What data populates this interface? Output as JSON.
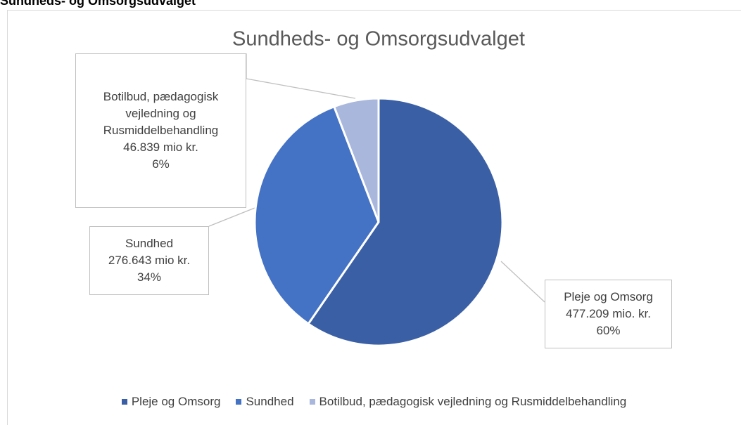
{
  "heading": "Sundheds- og Omsorgsudvalget",
  "chart_data": {
    "type": "pie",
    "title": "Sundheds- og Omsorgsudvalget",
    "categories": [
      "Pleje og Omsorg",
      "Sundhed",
      "Botilbud, pædagogisk vejledning og Rusmiddelbehandling"
    ],
    "values": [
      477.209,
      276.643,
      46.839
    ],
    "value_labels": [
      "477.209 mio. kr.",
      "276.643 mio kr.",
      "46.839 mio kr."
    ],
    "percent_labels": [
      "60%",
      "34%",
      "6%"
    ],
    "colors": [
      "#3a5fa5",
      "#4472c4",
      "#a9b7dd"
    ],
    "legend": "bottom"
  }
}
